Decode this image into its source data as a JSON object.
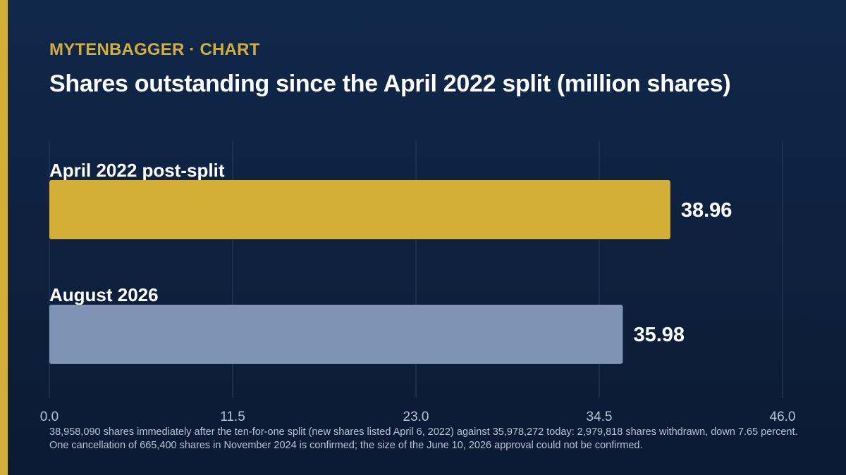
{
  "header": {
    "kicker": "MYTENBAGGER · CHART",
    "title": "Shares outstanding since the April 2022 split (million shares)"
  },
  "chart_data": {
    "type": "bar",
    "orientation": "horizontal",
    "categories": [
      "April 2022 post-split",
      "August 2026"
    ],
    "values": [
      38.96,
      35.98
    ],
    "value_labels": [
      "38.96",
      "35.98"
    ],
    "bar_colors": [
      "#d4af37",
      "#7f93b4"
    ],
    "xlim": [
      0,
      46
    ],
    "x_ticks": [
      0,
      11.5,
      23,
      34.5,
      46
    ],
    "x_tick_labels": [
      "0.0",
      "11.5",
      "23.0",
      "34.5",
      "46.0"
    ],
    "grid": true
  },
  "footnote": "38,958,090 shares immediately after the ten-for-one split (new shares listed April 6, 2022) against 35,978,272 today: 2,979,818 shares withdrawn, down 7.65 percent. One cancellation of 665,400 shares in November 2024 is confirmed; the size of the June 10, 2026 approval could not be confirmed.",
  "colors": {
    "background_top": "#10284b",
    "background_bottom": "#0b1a33",
    "accent": "#d4af37",
    "secondary_bar": "#7f93b4",
    "grid": "#2a3f60",
    "tick_text": "#b9c3d6"
  }
}
